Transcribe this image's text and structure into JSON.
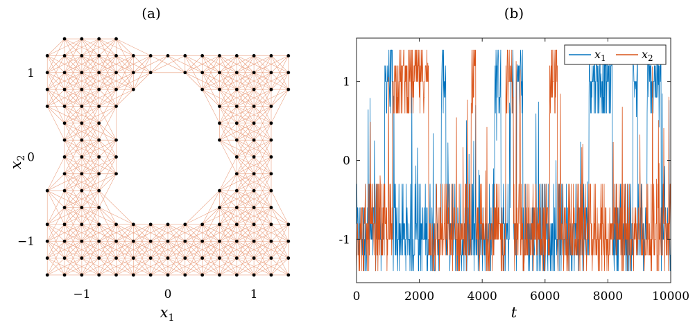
{
  "chart_data": [
    {
      "type": "scatter",
      "panel_label": "(a)",
      "xlabel": "x",
      "xlabel_sub": "1",
      "ylabel": "x",
      "ylabel_sub": "2",
      "xlim": [
        -1.45,
        1.45
      ],
      "ylim": [
        -1.45,
        1.45
      ],
      "xticks": [
        -1,
        0,
        1
      ],
      "xtick_labels": [
        "−1",
        "0",
        "1"
      ],
      "yticks": [
        1,
        0,
        -1
      ],
      "ytick_labels": [
        "1",
        "0",
        "−1"
      ],
      "grid_spacing": 0.2,
      "grid_range": [
        -1.4,
        1.4
      ],
      "node_color": "#000000",
      "edge_color": "#d95319",
      "rows": [
        {
          "y": 1.4,
          "x": [
            -1.2,
            -1.0,
            -0.8,
            -0.6
          ]
        },
        {
          "y": 1.2,
          "x": [
            -1.4,
            -1.2,
            -1.0,
            -0.8,
            -0.6,
            -0.4,
            -0.2,
            0.0,
            0.2,
            0.4,
            0.6,
            0.8,
            1.0,
            1.2,
            1.4
          ]
        },
        {
          "y": 1.0,
          "x": [
            -1.4,
            -1.2,
            -1.0,
            -0.8,
            -0.6,
            -0.4,
            -0.2,
            0.2,
            0.4,
            0.6,
            0.8,
            1.0,
            1.2,
            1.4
          ]
        },
        {
          "y": 0.8,
          "x": [
            -1.4,
            -1.2,
            -1.0,
            -0.8,
            -0.6,
            -0.4,
            0.4,
            0.6,
            0.8,
            1.0,
            1.2,
            1.4
          ]
        },
        {
          "y": 0.6,
          "x": [
            -1.4,
            -1.2,
            -1.0,
            -0.8,
            -0.6,
            0.6,
            0.8,
            1.0,
            1.2
          ]
        },
        {
          "y": 0.4,
          "x": [
            -1.2,
            -1.0,
            -0.8,
            0.6,
            0.8,
            1.0,
            1.2
          ]
        },
        {
          "y": 0.2,
          "x": [
            -1.2,
            -1.0,
            -0.8,
            -0.6,
            0.6,
            0.8,
            1.0,
            1.2
          ]
        },
        {
          "y": 0.0,
          "x": [
            -1.2,
            -1.0,
            -0.8,
            -0.6,
            0.8,
            1.0,
            1.2
          ]
        },
        {
          "y": -0.2,
          "x": [
            -1.2,
            -1.0,
            -0.8,
            -0.6,
            0.8,
            1.0,
            1.2
          ]
        },
        {
          "y": -0.4,
          "x": [
            -1.4,
            -1.2,
            -1.0,
            -0.8,
            0.6,
            0.8,
            1.0,
            1.2
          ]
        },
        {
          "y": -0.6,
          "x": [
            -1.2,
            -1.0,
            -0.8,
            0.6,
            0.8,
            1.0,
            1.2
          ]
        },
        {
          "y": -0.8,
          "x": [
            -1.4,
            -1.2,
            -1.0,
            -0.8,
            -0.6,
            -0.4,
            -0.2,
            0.0,
            0.2,
            0.4,
            0.6,
            0.8,
            1.0,
            1.2,
            1.4
          ]
        },
        {
          "y": -1.0,
          "x": [
            -1.4,
            -1.2,
            -1.0,
            -0.8,
            -0.6,
            -0.4,
            -0.2,
            0.0,
            0.2,
            0.4,
            0.6,
            0.8,
            1.0,
            1.2,
            1.4
          ]
        },
        {
          "y": -1.2,
          "x": [
            -1.4,
            -1.2,
            -1.0,
            -0.8,
            -0.6,
            -0.4,
            -0.2,
            0.0,
            0.2,
            0.4,
            0.6,
            0.8,
            1.0,
            1.2,
            1.4
          ]
        },
        {
          "y": -1.4,
          "x": [
            -1.4,
            -1.2,
            -1.0,
            -0.8,
            -0.6,
            -0.4,
            -0.2,
            0.0,
            0.2,
            0.4,
            0.6,
            0.8,
            1.0,
            1.2,
            1.4
          ]
        }
      ]
    },
    {
      "type": "line",
      "panel_label": "(b)",
      "xlabel": "t",
      "ylabel": "",
      "xlim": [
        0,
        10000
      ],
      "ylim": [
        -1.55,
        1.55
      ],
      "xticks": [
        0,
        2000,
        4000,
        6000,
        8000,
        10000
      ],
      "xtick_labels": [
        "0",
        "2000",
        "4000",
        "6000",
        "8000",
        "10000"
      ],
      "yticks": [
        1,
        0,
        -1
      ],
      "ytick_labels": [
        "1",
        "0",
        "-1"
      ],
      "legend_position": "top-right",
      "n_samples": 1000,
      "series": [
        {
          "name": "x",
          "name_sub": "1",
          "color": "#0072bd",
          "states": [
            {
              "t": [
                0,
                900
              ],
              "level": -1
            },
            {
              "t": [
                900,
                1150
              ],
              "level": 1
            },
            {
              "t": [
                1150,
                2300
              ],
              "level": -1
            },
            {
              "t": [
                2300,
                2700
              ],
              "level": -1
            },
            {
              "t": [
                2700,
                2850
              ],
              "level": 1
            },
            {
              "t": [
                2850,
                4400
              ],
              "level": -1
            },
            {
              "t": [
                4400,
                4600
              ],
              "level": 1
            },
            {
              "t": [
                4600,
                4900
              ],
              "level": -1
            },
            {
              "t": [
                4900,
                5000
              ],
              "level": 1
            },
            {
              "t": [
                5000,
                5100
              ],
              "level": -1
            },
            {
              "t": [
                5100,
                5300
              ],
              "level": 1
            },
            {
              "t": [
                5300,
                7400
              ],
              "level": -1
            },
            {
              "t": [
                7400,
                8150
              ],
              "level": 1
            },
            {
              "t": [
                8150,
                8800
              ],
              "level": -1
            },
            {
              "t": [
                8800,
                8950
              ],
              "level": 1
            },
            {
              "t": [
                8950,
                9250
              ],
              "level": -1
            },
            {
              "t": [
                9250,
                9700
              ],
              "level": 1
            },
            {
              "t": [
                9700,
                10000
              ],
              "level": -1
            }
          ]
        },
        {
          "name": "x",
          "name_sub": "2",
          "color": "#d95319",
          "states": [
            {
              "t": [
                0,
                900
              ],
              "level": -1
            },
            {
              "t": [
                900,
                1150
              ],
              "level": -1
            },
            {
              "t": [
                1150,
                2300
              ],
              "level": 1
            },
            {
              "t": [
                2300,
                3650
              ],
              "level": -1
            },
            {
              "t": [
                3650,
                3800
              ],
              "level": 1
            },
            {
              "t": [
                3800,
                4750
              ],
              "level": -1
            },
            {
              "t": [
                4750,
                5000
              ],
              "level": 1
            },
            {
              "t": [
                5000,
                6150
              ],
              "level": -1
            },
            {
              "t": [
                6150,
                6400
              ],
              "level": 1
            },
            {
              "t": [
                6400,
                10000
              ],
              "level": -1
            }
          ]
        }
      ]
    }
  ]
}
